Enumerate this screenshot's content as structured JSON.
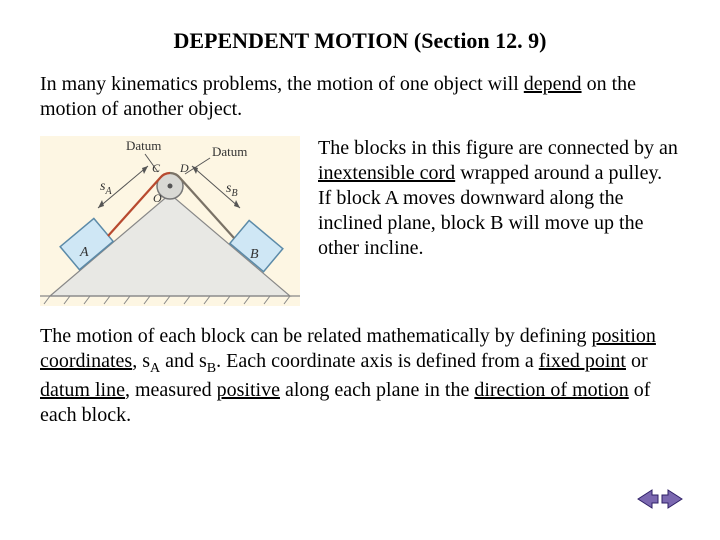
{
  "title": "DEPENDENT MOTION (Section 12. 9)",
  "intro_html": "In many kinematics problems, the motion of one object will <u>depend</u> on the motion of another object.",
  "right_html": "The blocks in this figure are connected by an <u>inextensible cord</u> wrapped around a pulley.<br>If block A moves downward along the inclined plane, block B will move up the other incline.",
  "bottom_html": "The motion of each block can be related mathematically by defining <u>position coordinates</u>, s<span class=\"sub\">A</span> and s<span class=\"sub\">B</span>.  Each coordinate axis is defined from a <u>fixed point</u> or <u>datum line</u>, measured <u>positive</u> along each plane in the <u>direction of motion</u> of each block.",
  "figure": {
    "labels": {
      "datum_left": "Datum",
      "datum_right": "Datum",
      "sA": "s",
      "sA_sub": "A",
      "sB": "s",
      "sB_sub": "B",
      "C": "C",
      "D": "D",
      "O": "O",
      "A": "A",
      "B": "B"
    },
    "colors": {
      "bg": "#fdf6e3",
      "block_fill": "#cfe7f5",
      "block_stroke": "#5b8aa8",
      "wedge_fill": "#e8e8e4",
      "wedge_stroke": "#888888",
      "pulley_fill": "#d9d9d4",
      "pulley_stroke": "#777777",
      "cord_c": "#b84a2f",
      "cord_d": "#7a7266",
      "label": "#333333",
      "arrow": "#555555"
    }
  },
  "nav": {
    "back_icon": "nav-back",
    "fwd_icon": "nav-forward",
    "fill": "#7b68b0",
    "stroke": "#2e1f66"
  }
}
